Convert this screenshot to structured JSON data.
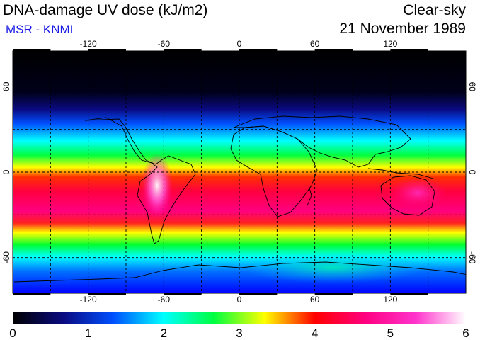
{
  "header": {
    "title": "DNA-damage UV dose (kJ/m2)",
    "subtitle": "MSR - KNMI",
    "condition": "Clear-sky",
    "date": "21 November 1989"
  },
  "map": {
    "lon_ticks": [
      "-120",
      "-60",
      "0",
      "60",
      "120"
    ],
    "lon_values": [
      -120,
      -60,
      0,
      60,
      120
    ],
    "lat_ticks": [
      "60",
      "0",
      "-60"
    ],
    "lat_values": [
      60,
      0,
      -60
    ],
    "gridlines": "dashed every 30 degrees"
  },
  "colorbar": {
    "labels": [
      "0",
      "1",
      "2",
      "3",
      "4",
      "5",
      "6"
    ],
    "min": 0,
    "max": 6,
    "colors": [
      "#000000",
      "#0a0a80",
      "#0050ff",
      "#00ffff",
      "#00ff40",
      "#ffff00",
      "#ff0000",
      "#ff0080",
      "#ff33cc",
      "#ffffff"
    ]
  }
}
